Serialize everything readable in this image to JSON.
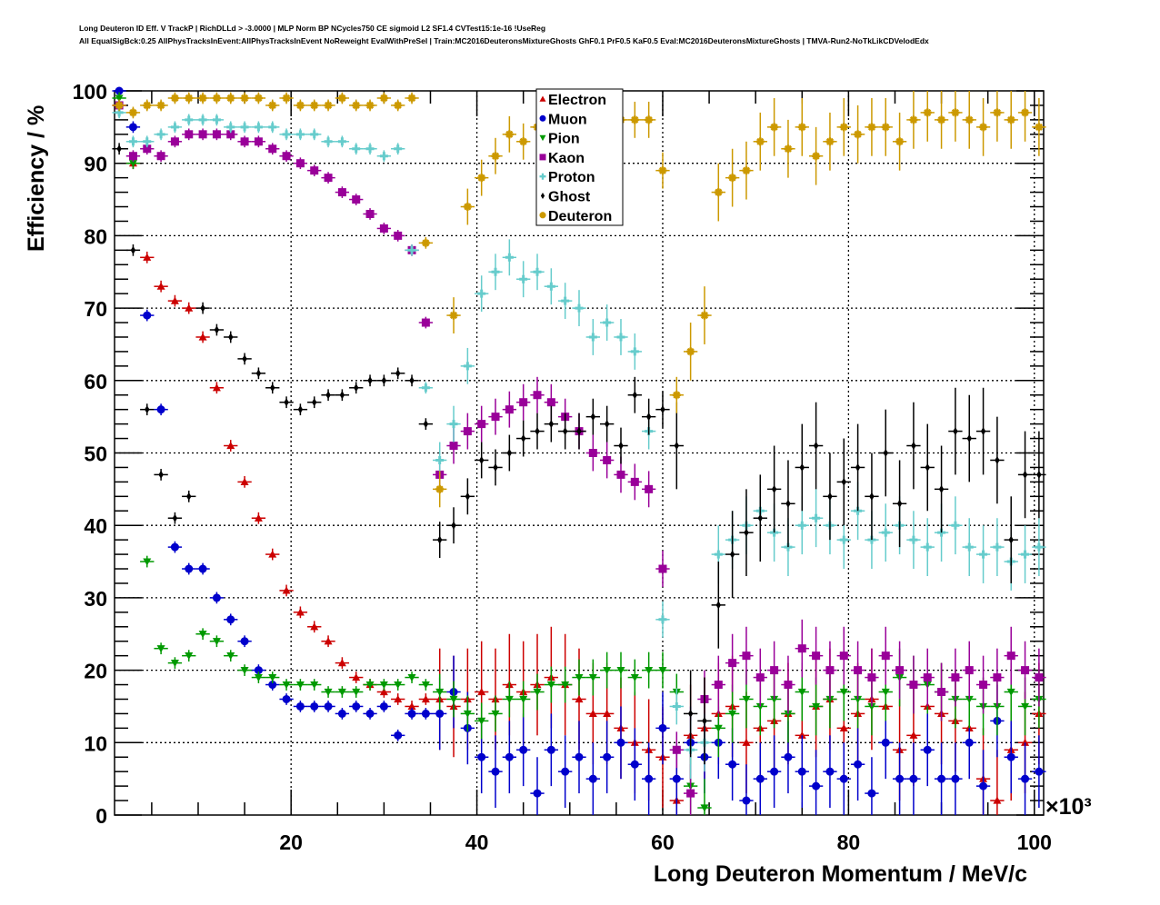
{
  "title": {
    "line1": "Long Deuteron ID Eff. V TrackP | RichDLLd > -3.0000 | MLP Norm BP NCycles750 CE sigmoid L2 SF1.4 CVTest15:1e-16 !UseReg",
    "line2": "All EqualSigBck:0.25 AllPhysTracksInEvent:AllPhysTracksInEvent NoReweight EvalWithPreSel | Train:MC2016DeuteronsMixtureGhosts GhF0.1 PrF0.5 KaF0.5 Eval:MC2016DeuteronsMixtureGhosts | TMVA-Run2-NoTkLikCDVelodEdx"
  },
  "chart_data": {
    "type": "scatter",
    "title": "Long Deuteron ID Eff. V TrackP | RichDLLd > -3.0000",
    "xlabel": "Long Deuteron Momentum / MeV/c",
    "ylabel": "Efficiency / %",
    "x_multiplier": "×10³",
    "xlim": [
      1,
      101
    ],
    "ylim": [
      0,
      100
    ],
    "xticks": [
      "20",
      "40",
      "60",
      "80",
      "100"
    ],
    "xtick_values": [
      20,
      40,
      60,
      80,
      100
    ],
    "yticks": [
      "0",
      "10",
      "20",
      "30",
      "40",
      "50",
      "60",
      "70",
      "80",
      "90",
      "100"
    ],
    "ytick_values": [
      0,
      10,
      20,
      30,
      40,
      50,
      60,
      70,
      80,
      90,
      100
    ],
    "grid": true,
    "legend_position": "top-center",
    "x": [
      1.5,
      3,
      4.5,
      6,
      7.5,
      9,
      10.5,
      12,
      13.5,
      15,
      16.5,
      18,
      19.5,
      21,
      22.5,
      24,
      25.5,
      27,
      28.5,
      30,
      31.5,
      33,
      34.5,
      36,
      37.5,
      39,
      40.5,
      42,
      43.5,
      45,
      46.5,
      48,
      49.5,
      51,
      52.5,
      54,
      55.5,
      57,
      58.5,
      60,
      61.5,
      63,
      64.5,
      66,
      67.5,
      69,
      70.5,
      72,
      73.5,
      75,
      76.5,
      78,
      79.5,
      81,
      82.5,
      84,
      85.5,
      87,
      88.5,
      90,
      91.5,
      93,
      94.5,
      96,
      97.5,
      99,
      100.5
    ],
    "series": [
      {
        "name": "Electron",
        "color": "#cc0000",
        "marker": "triangle-up",
        "values": [
          98,
          90,
          77,
          73,
          71,
          70,
          66,
          59,
          51,
          46,
          41,
          36,
          31,
          28,
          26,
          24,
          21,
          19,
          18,
          17,
          16,
          15,
          16,
          16,
          15,
          16,
          17,
          16,
          18,
          17,
          18,
          19,
          18,
          16,
          14,
          14,
          12,
          10,
          9,
          8,
          2,
          11,
          12,
          14,
          15,
          10,
          12,
          13,
          14,
          11,
          15,
          16,
          12,
          14,
          16,
          15,
          9,
          11,
          15,
          14,
          13,
          12,
          5,
          2,
          9,
          10,
          14
        ]
      },
      {
        "name": "Muon",
        "color": "#0000cc",
        "marker": "circle",
        "values": [
          100,
          95,
          69,
          56,
          37,
          34,
          34,
          30,
          27,
          24,
          20,
          18,
          16,
          15,
          15,
          15,
          14,
          15,
          14,
          15,
          11,
          14,
          14,
          14,
          17,
          12,
          8,
          6,
          8,
          9,
          3,
          9,
          6,
          8,
          5,
          8,
          10,
          7,
          5,
          12,
          5,
          10,
          8,
          10,
          7,
          2,
          5,
          6,
          8,
          6,
          4,
          6,
          5,
          7,
          3,
          10,
          5,
          5,
          9,
          5,
          5,
          10,
          4,
          13,
          8,
          5,
          6
        ]
      },
      {
        "name": "Pion",
        "color": "#009900",
        "marker": "triangle-down",
        "values": [
          99,
          90,
          35,
          23,
          21,
          22,
          25,
          24,
          22,
          20,
          19,
          19,
          18,
          18,
          18,
          17,
          17,
          17,
          18,
          18,
          18,
          19,
          18,
          17,
          16,
          14,
          13,
          14,
          16,
          16,
          17,
          18,
          18,
          19,
          19,
          20,
          20,
          19,
          20,
          20,
          17,
          4,
          1,
          12,
          14,
          16,
          15,
          16,
          14,
          17,
          15,
          16,
          17,
          16,
          15,
          17,
          19,
          18,
          18,
          17,
          16,
          16,
          15,
          15,
          17,
          15,
          16
        ]
      },
      {
        "name": "Kaon",
        "color": "#990099",
        "marker": "square",
        "values": [
          98,
          91,
          92,
          91,
          93,
          94,
          94,
          94,
          94,
          93,
          93,
          92,
          91,
          90,
          89,
          88,
          86,
          85,
          83,
          81,
          80,
          78,
          68,
          47,
          51,
          53,
          54,
          55,
          56,
          57,
          58,
          57,
          55,
          53,
          50,
          49,
          47,
          46,
          45,
          34,
          9,
          3,
          16,
          18,
          21,
          22,
          19,
          20,
          18,
          23,
          22,
          20,
          22,
          20,
          19,
          22,
          20,
          18,
          19,
          17,
          19,
          20,
          18,
          19,
          22,
          20,
          19
        ]
      },
      {
        "name": "Proton",
        "color": "#66cccc",
        "marker": "cross",
        "values": [
          97,
          93,
          93,
          94,
          95,
          96,
          96,
          96,
          95,
          95,
          95,
          95,
          94,
          94,
          94,
          93,
          93,
          92,
          92,
          91,
          92,
          78,
          59,
          49,
          54,
          62,
          72,
          75,
          77,
          74,
          75,
          73,
          71,
          70,
          66,
          68,
          66,
          64,
          53,
          27,
          15,
          9,
          10,
          36,
          38,
          40,
          42,
          39,
          37,
          40,
          41,
          40,
          38,
          42,
          38,
          39,
          40,
          38,
          37,
          39,
          40,
          37,
          36,
          37,
          35,
          36,
          37
        ]
      },
      {
        "name": "Ghost",
        "color": "#000000",
        "marker": "diamond",
        "values": [
          92,
          78,
          56,
          47,
          41,
          44,
          70,
          67,
          66,
          63,
          61,
          59,
          57,
          56,
          57,
          58,
          58,
          59,
          60,
          60,
          61,
          60,
          54,
          38,
          40,
          44,
          49,
          48,
          50,
          52,
          53,
          54,
          53,
          53,
          55,
          54,
          51,
          58,
          55,
          56,
          51,
          14,
          13,
          29,
          36,
          39,
          41,
          45,
          43,
          48,
          51,
          44,
          46,
          48,
          44,
          50,
          43,
          51,
          48,
          45,
          53,
          52,
          53,
          49,
          38,
          47,
          47
        ]
      },
      {
        "name": "Deuteron",
        "color": "#cc9900",
        "marker": "star",
        "values": [
          98,
          97,
          98,
          98,
          99,
          99,
          99,
          99,
          99,
          99,
          99,
          98,
          99,
          98,
          98,
          98,
          99,
          98,
          98,
          99,
          98,
          99,
          79,
          45,
          69,
          84,
          88,
          91,
          94,
          93,
          95,
          96,
          96,
          96,
          96,
          97,
          96,
          96,
          96,
          89,
          58,
          64,
          69,
          86,
          88,
          89,
          93,
          95,
          92,
          95,
          91,
          93,
          95,
          94,
          95,
          95,
          93,
          96,
          97,
          96,
          97,
          96,
          95,
          97,
          96,
          97,
          95
        ]
      }
    ]
  },
  "legend": {
    "items": [
      {
        "label": "Electron",
        "color": "#cc0000",
        "marker": "triangle-up"
      },
      {
        "label": "Muon",
        "color": "#0000cc",
        "marker": "circle"
      },
      {
        "label": "Pion",
        "color": "#009900",
        "marker": "triangle-down"
      },
      {
        "label": "Kaon",
        "color": "#990099",
        "marker": "square"
      },
      {
        "label": "Proton",
        "color": "#66cccc",
        "marker": "cross"
      },
      {
        "label": "Ghost",
        "color": "#000000",
        "marker": "diamond"
      },
      {
        "label": "Deuteron",
        "color": "#cc9900",
        "marker": "star"
      }
    ]
  }
}
